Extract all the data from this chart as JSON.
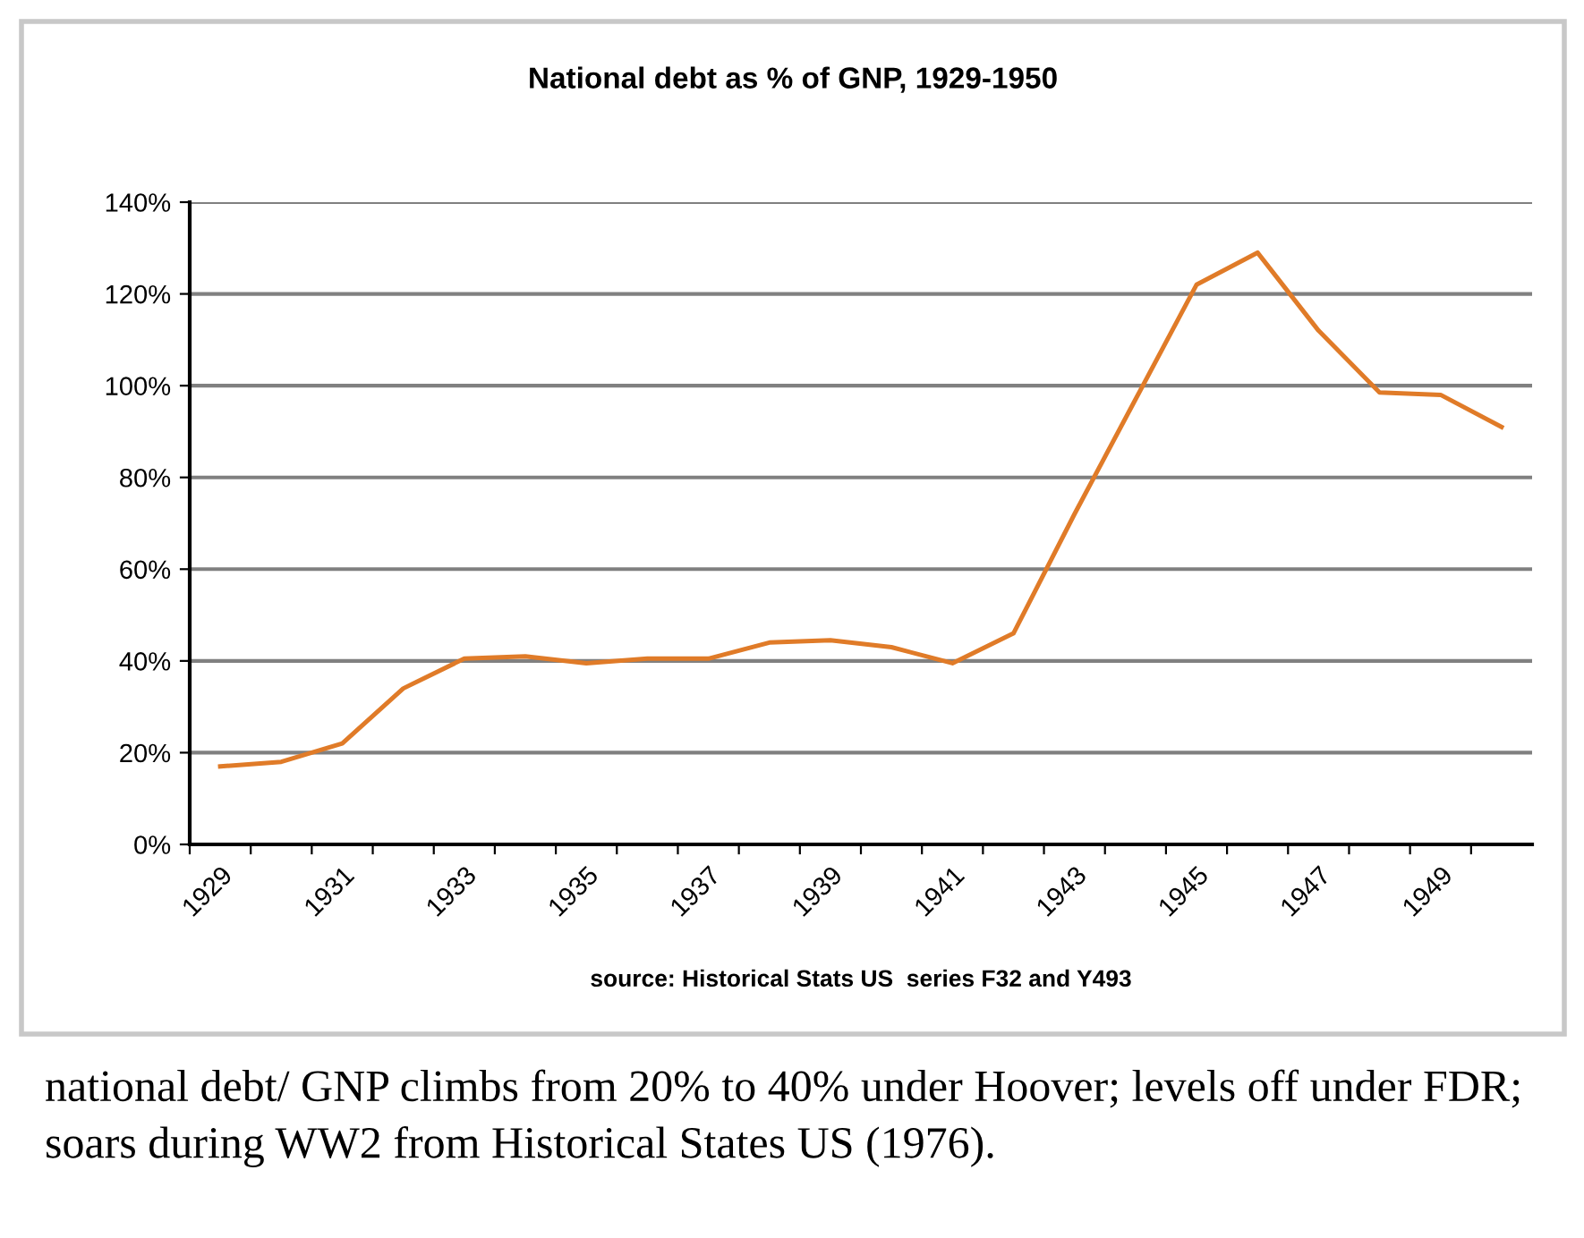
{
  "chart_data": {
    "type": "line",
    "title": "National debt as % of GNP, 1929-1950",
    "categories": [
      "1929",
      null,
      "1931",
      null,
      "1933",
      null,
      "1935",
      null,
      "1937",
      null,
      "1939",
      null,
      "1941",
      null,
      "1943",
      null,
      "1945",
      null,
      "1947",
      null,
      "1949",
      null
    ],
    "series": [
      {
        "color": "#e07b28",
        "values": [
          17,
          18,
          22,
          34,
          40.5,
          41,
          39.5,
          40.5,
          40.5,
          44,
          44.5,
          43,
          39.5,
          46,
          72,
          97,
          122,
          129,
          112,
          98.5,
          98,
          91
        ]
      }
    ],
    "ylim": [
      0,
      140
    ],
    "yticks": [
      {
        "value": 0,
        "label": "0%"
      },
      {
        "value": 20,
        "label": "20%"
      },
      {
        "value": 40,
        "label": "40%"
      },
      {
        "value": 60,
        "label": "60%"
      },
      {
        "value": 80,
        "label": "80%"
      },
      {
        "value": 100,
        "label": "100%"
      },
      {
        "value": 120,
        "label": "120%"
      },
      {
        "value": 140,
        "label": "140%"
      }
    ],
    "grid": "y",
    "marker": "none",
    "line_style": "solid",
    "annotations": [
      "source: Historical Stats US  series F32 and Y493",
      "national debt/ GNP climbs from 20% to 40% under Hoover; levels off under FDR; soars during WW2 from Historical States US (1976)."
    ]
  }
}
